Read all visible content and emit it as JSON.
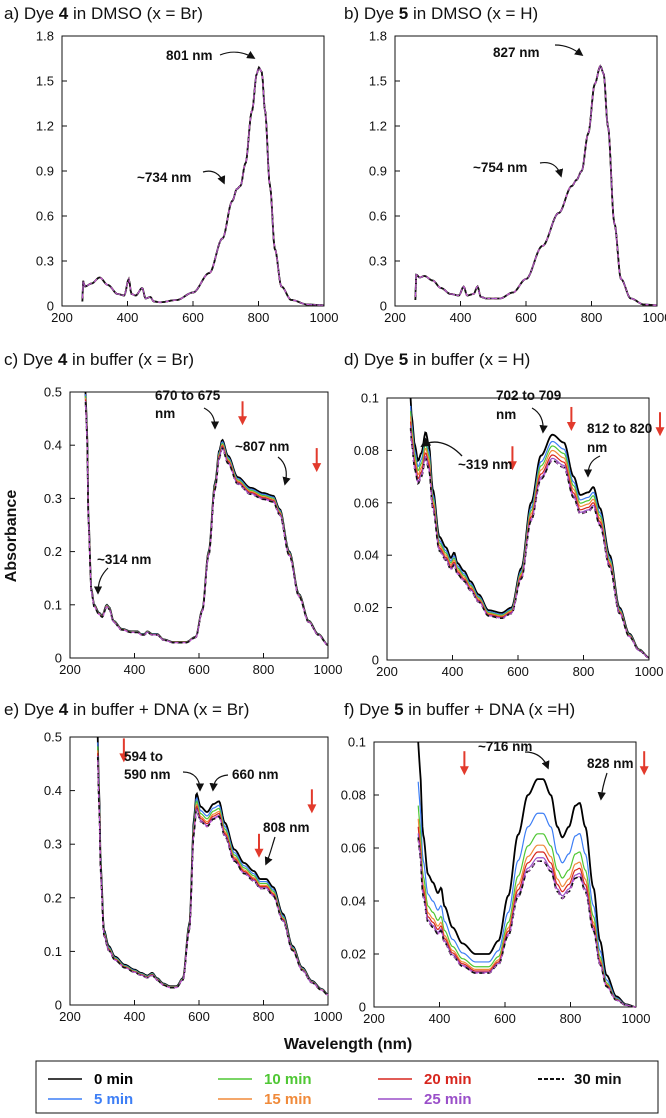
{
  "figure": {
    "xlabel": "Wavelength (nm)",
    "ylabel": "Absorbance"
  },
  "legend": [
    {
      "label": "0 min",
      "color": "#000000",
      "dashed": false
    },
    {
      "label": "5 min",
      "color": "#3d7ef5",
      "dashed": false
    },
    {
      "label": "10 min",
      "color": "#4fc734",
      "dashed": false
    },
    {
      "label": "15 min",
      "color": "#f08a3a",
      "dashed": false
    },
    {
      "label": "20 min",
      "color": "#d7261e",
      "dashed": false
    },
    {
      "label": "25 min",
      "color": "#9a4fc9",
      "dashed": false
    },
    {
      "label": "30 min",
      "color": "#111111",
      "dashed": true
    }
  ],
  "arrow_color": "#e23a2c",
  "chart_data": [
    {
      "id": "a",
      "type": "line",
      "title": {
        "prefix": "a) Dye ",
        "num": "4",
        "suffix": " in DMSO (x = Br)"
      },
      "xlabel": "Wavelength (nm)",
      "ylabel": "Absorbance",
      "xlim": [
        200,
        1000
      ],
      "ylim": [
        0,
        1.8
      ],
      "xticks": [
        "200",
        "400",
        "600",
        "800",
        "1000"
      ],
      "yticks": [
        "0",
        "0.3",
        "0.6",
        "0.9",
        "1.2",
        "1.5",
        "1.8"
      ],
      "ytick_values": [
        0,
        0.3,
        0.6,
        0.9,
        1.2,
        1.5,
        1.8
      ],
      "x_start": 262,
      "anchors": [
        [
          262,
          0.03
        ],
        [
          264,
          0.17
        ],
        [
          270,
          0.13
        ],
        [
          290,
          0.15
        ],
        [
          315,
          0.19
        ],
        [
          340,
          0.14
        ],
        [
          370,
          0.08
        ],
        [
          390,
          0.07
        ],
        [
          404,
          0.18
        ],
        [
          412,
          0.08
        ],
        [
          425,
          0.07
        ],
        [
          445,
          0.12
        ],
        [
          455,
          0.05
        ],
        [
          470,
          0.06
        ],
        [
          480,
          0.03
        ],
        [
          500,
          0.025
        ],
        [
          550,
          0.04
        ],
        [
          600,
          0.09
        ],
        [
          650,
          0.22
        ],
        [
          690,
          0.45
        ],
        [
          720,
          0.7
        ],
        [
          734,
          0.78
        ],
        [
          745,
          0.8
        ],
        [
          760,
          0.95
        ],
        [
          780,
          1.3
        ],
        [
          795,
          1.55
        ],
        [
          801,
          1.59
        ],
        [
          810,
          1.56
        ],
        [
          820,
          1.3
        ],
        [
          835,
          0.8
        ],
        [
          850,
          0.38
        ],
        [
          870,
          0.13
        ],
        [
          900,
          0.04
        ],
        [
          950,
          0.01
        ],
        [
          1000,
          0.005
        ]
      ],
      "series_scale": [
        1,
        1,
        1,
        1,
        1,
        1,
        1
      ],
      "annotations": [
        {
          "text": "801 nm",
          "x_value": 801,
          "y_value": 1.6
        },
        {
          "text": "~734 nm",
          "x_value": 734,
          "y_value": 0.8
        }
      ],
      "trend_arrows": []
    },
    {
      "id": "b",
      "type": "line",
      "title": {
        "prefix": "b) Dye ",
        "num": "5",
        "suffix": " in DMSO (x = H)"
      },
      "xlabel": "Wavelength (nm)",
      "ylabel": "Absorbance",
      "xlim": [
        200,
        1000
      ],
      "ylim": [
        0,
        1.8
      ],
      "xticks": [
        "200",
        "400",
        "600",
        "800",
        "1000"
      ],
      "yticks": [
        "0",
        "0.3",
        "0.6",
        "0.9",
        "1.2",
        "1.5",
        "1.8"
      ],
      "ytick_values": [
        0,
        0.3,
        0.6,
        0.9,
        1.2,
        1.5,
        1.8
      ],
      "x_start": 262,
      "anchors": [
        [
          262,
          0.04
        ],
        [
          265,
          0.21
        ],
        [
          275,
          0.19
        ],
        [
          290,
          0.2
        ],
        [
          315,
          0.17
        ],
        [
          340,
          0.12
        ],
        [
          370,
          0.08
        ],
        [
          395,
          0.07
        ],
        [
          410,
          0.13
        ],
        [
          420,
          0.07
        ],
        [
          440,
          0.08
        ],
        [
          452,
          0.13
        ],
        [
          462,
          0.06
        ],
        [
          480,
          0.05
        ],
        [
          520,
          0.05
        ],
        [
          560,
          0.09
        ],
        [
          600,
          0.18
        ],
        [
          650,
          0.4
        ],
        [
          700,
          0.62
        ],
        [
          740,
          0.8
        ],
        [
          754,
          0.84
        ],
        [
          770,
          0.9
        ],
        [
          790,
          1.15
        ],
        [
          810,
          1.48
        ],
        [
          827,
          1.6
        ],
        [
          837,
          1.55
        ],
        [
          850,
          1.2
        ],
        [
          870,
          0.55
        ],
        [
          890,
          0.18
        ],
        [
          920,
          0.05
        ],
        [
          960,
          0.01
        ],
        [
          1000,
          0.005
        ]
      ],
      "series_scale": [
        1,
        1,
        1,
        1,
        1,
        1,
        1
      ],
      "annotations": [
        {
          "text": "827 nm",
          "x_value": 827,
          "y_value": 1.62
        },
        {
          "text": "~754 nm",
          "x_value": 754,
          "y_value": 0.84
        }
      ],
      "trend_arrows": []
    },
    {
      "id": "c",
      "type": "line",
      "title": {
        "prefix": "c) Dye ",
        "num": "4",
        "suffix": " in buffer (x = Br)"
      },
      "xlabel": "Wavelength (nm)",
      "ylabel": "Absorbance",
      "xlim": [
        200,
        1000
      ],
      "ylim": [
        0,
        0.5
      ],
      "xticks": [
        "200",
        "400",
        "600",
        "800",
        "1000"
      ],
      "yticks": [
        "0",
        "0.1",
        "0.2",
        "0.3",
        "0.4",
        "0.5"
      ],
      "ytick_values": [
        0,
        0.1,
        0.2,
        0.3,
        0.4,
        0.5
      ],
      "x_start": 248,
      "anchors": [
        [
          248,
          0.5
        ],
        [
          252,
          0.45
        ],
        [
          258,
          0.25
        ],
        [
          266,
          0.13
        ],
        [
          275,
          0.1
        ],
        [
          290,
          0.085
        ],
        [
          300,
          0.08
        ],
        [
          314,
          0.1
        ],
        [
          322,
          0.095
        ],
        [
          335,
          0.07
        ],
        [
          360,
          0.055
        ],
        [
          390,
          0.05
        ],
        [
          410,
          0.05
        ],
        [
          420,
          0.045
        ],
        [
          430,
          0.045
        ],
        [
          440,
          0.05
        ],
        [
          455,
          0.045
        ],
        [
          470,
          0.045
        ],
        [
          490,
          0.035
        ],
        [
          520,
          0.03
        ],
        [
          560,
          0.03
        ],
        [
          590,
          0.04
        ],
        [
          610,
          0.09
        ],
        [
          630,
          0.2
        ],
        [
          650,
          0.33
        ],
        [
          663,
          0.39
        ],
        [
          672,
          0.41
        ],
        [
          690,
          0.38
        ],
        [
          720,
          0.34
        ],
        [
          760,
          0.32
        ],
        [
          800,
          0.31
        ],
        [
          830,
          0.305
        ],
        [
          850,
          0.28
        ],
        [
          880,
          0.2
        ],
        [
          910,
          0.12
        ],
        [
          940,
          0.07
        ],
        [
          970,
          0.045
        ],
        [
          1000,
          0.025
        ]
      ],
      "series_scale": [
        1,
        0.992,
        0.985,
        0.978,
        0.972,
        0.966,
        0.962
      ],
      "annotations": [
        {
          "text": "670 to 675",
          "x_value": 672,
          "y_value": 0.415
        },
        {
          "text": "nm",
          "x_value": 672,
          "y_value": 0.415
        },
        {
          "text": "~807 nm",
          "x_value": 850,
          "y_value": 0.3
        },
        {
          "text": "~314 nm",
          "x_value": 318,
          "y_value": 0.105
        }
      ],
      "trend_arrows": [
        {
          "x_value": 735,
          "y_value": 0.46
        },
        {
          "x_value": 965,
          "y_value": 0.372
        }
      ]
    },
    {
      "id": "d",
      "type": "line",
      "title": {
        "prefix": "d) Dye ",
        "num": "5",
        "suffix": " in buffer (x = H)"
      },
      "xlabel": "Wavelength (nm)",
      "ylabel": "Absorbance",
      "xlim": [
        200,
        1000
      ],
      "ylim": [
        0,
        0.1
      ],
      "xticks": [
        "200",
        "400",
        "600",
        "800",
        "1000"
      ],
      "yticks": [
        "0",
        "0.02",
        "0.04",
        "0.06",
        "0.08",
        "0.1"
      ],
      "ytick_values": [
        0,
        0.02,
        0.04,
        0.06,
        0.08,
        0.1
      ],
      "x_start": 272,
      "anchors": [
        [
          272,
          0.1
        ],
        [
          276,
          0.092
        ],
        [
          285,
          0.082
        ],
        [
          295,
          0.076
        ],
        [
          305,
          0.079
        ],
        [
          318,
          0.087
        ],
        [
          328,
          0.082
        ],
        [
          340,
          0.065
        ],
        [
          360,
          0.047
        ],
        [
          380,
          0.043
        ],
        [
          395,
          0.039
        ],
        [
          405,
          0.041
        ],
        [
          415,
          0.037
        ],
        [
          435,
          0.034
        ],
        [
          455,
          0.03
        ],
        [
          480,
          0.025
        ],
        [
          510,
          0.019
        ],
        [
          550,
          0.018
        ],
        [
          580,
          0.02
        ],
        [
          610,
          0.035
        ],
        [
          640,
          0.06
        ],
        [
          670,
          0.078
        ],
        [
          705,
          0.086
        ],
        [
          740,
          0.083
        ],
        [
          770,
          0.07
        ],
        [
          790,
          0.063
        ],
        [
          815,
          0.064
        ],
        [
          830,
          0.066
        ],
        [
          850,
          0.058
        ],
        [
          880,
          0.04
        ],
        [
          910,
          0.02
        ],
        [
          940,
          0.01
        ],
        [
          970,
          0.004
        ],
        [
          1000,
          0.001
        ]
      ],
      "series_scale": [
        1,
        0.97,
        0.95,
        0.93,
        0.91,
        0.895,
        0.885
      ],
      "annotations": [
        {
          "text": "702 to 709",
          "x_value": 705,
          "y_value": 0.086
        },
        {
          "text": "nm",
          "x_value": 705,
          "y_value": 0.086
        },
        {
          "text": "812 to 820",
          "x_value": 825,
          "y_value": 0.066
        },
        {
          "text": "nm",
          "x_value": 825,
          "y_value": 0.066
        },
        {
          "text": "~319 nm",
          "x_value": 318,
          "y_value": 0.088
        }
      ],
      "trend_arrows": [
        {
          "x_value": 583,
          "y_value": 0.077
        },
        {
          "x_value": 763,
          "y_value": 0.092
        },
        {
          "x_value": 1050,
          "y_value": 0.09
        }
      ]
    },
    {
      "id": "e",
      "type": "line",
      "title": {
        "prefix": "e) Dye ",
        "num": "4",
        "suffix": " in buffer + DNA (x = Br)"
      },
      "xlabel": "Wavelength (nm)",
      "ylabel": "Absorbance",
      "xlim": [
        200,
        1000
      ],
      "ylim": [
        0,
        0.5
      ],
      "xticks": [
        "200",
        "400",
        "600",
        "800",
        "1000"
      ],
      "yticks": [
        "0",
        "0.1",
        "0.2",
        "0.3",
        "0.4",
        "0.5"
      ],
      "ytick_values": [
        0,
        0.1,
        0.2,
        0.3,
        0.4,
        0.5
      ],
      "x_start": 286,
      "anchors": [
        [
          286,
          0.5
        ],
        [
          290,
          0.4
        ],
        [
          296,
          0.25
        ],
        [
          305,
          0.14
        ],
        [
          320,
          0.11
        ],
        [
          340,
          0.09
        ],
        [
          370,
          0.075
        ],
        [
          400,
          0.066
        ],
        [
          420,
          0.06
        ],
        [
          440,
          0.055
        ],
        [
          455,
          0.06
        ],
        [
          470,
          0.05
        ],
        [
          490,
          0.04
        ],
        [
          510,
          0.035
        ],
        [
          530,
          0.035
        ],
        [
          550,
          0.05
        ],
        [
          570,
          0.15
        ],
        [
          585,
          0.35
        ],
        [
          592,
          0.395
        ],
        [
          605,
          0.37
        ],
        [
          625,
          0.36
        ],
        [
          645,
          0.375
        ],
        [
          662,
          0.38
        ],
        [
          680,
          0.34
        ],
        [
          710,
          0.29
        ],
        [
          740,
          0.265
        ],
        [
          770,
          0.25
        ],
        [
          790,
          0.235
        ],
        [
          808,
          0.235
        ],
        [
          830,
          0.22
        ],
        [
          860,
          0.17
        ],
        [
          890,
          0.11
        ],
        [
          920,
          0.07
        ],
        [
          950,
          0.045
        ],
        [
          980,
          0.03
        ],
        [
          1000,
          0.02
        ]
      ],
      "series_scale": [
        1,
        0.98,
        0.965,
        0.95,
        0.94,
        0.93,
        0.925
      ],
      "annotations": [
        {
          "text": "594 to",
          "x_value": 592,
          "y_value": 0.395
        },
        {
          "text": "590 nm",
          "x_value": 592,
          "y_value": 0.395
        },
        {
          "text": "660 nm",
          "x_value": 662,
          "y_value": 0.38
        },
        {
          "text": "808 nm",
          "x_value": 808,
          "y_value": 0.24
        }
      ],
      "trend_arrows": [
        {
          "x_value": 367,
          "y_value": 0.475
        },
        {
          "x_value": 950,
          "y_value": 0.38
        },
        {
          "x_value": 786,
          "y_value": 0.297
        }
      ]
    },
    {
      "id": "f",
      "type": "line",
      "title": {
        "prefix": "f) Dye ",
        "num": "5",
        "suffix": " in buffer + DNA (x =H)"
      },
      "xlabel": "Wavelength (nm)",
      "ylabel": "Absorbance",
      "xlim": [
        200,
        1000
      ],
      "ylim": [
        0,
        0.1
      ],
      "xticks": [
        "200",
        "400",
        "600",
        "800",
        "1000"
      ],
      "yticks": [
        "0",
        "0.02",
        "0.04",
        "0.06",
        "0.08",
        "0.1"
      ],
      "ytick_values": [
        0,
        0.02,
        0.04,
        0.06,
        0.08,
        0.1
      ],
      "x_start": 335,
      "anchors": [
        [
          335,
          0.1
        ],
        [
          340,
          0.09
        ],
        [
          350,
          0.065
        ],
        [
          365,
          0.05
        ],
        [
          380,
          0.047
        ],
        [
          395,
          0.043
        ],
        [
          405,
          0.045
        ],
        [
          415,
          0.038
        ],
        [
          440,
          0.03
        ],
        [
          470,
          0.024
        ],
        [
          510,
          0.02
        ],
        [
          550,
          0.02
        ],
        [
          580,
          0.025
        ],
        [
          610,
          0.042
        ],
        [
          640,
          0.065
        ],
        [
          670,
          0.08
        ],
        [
          700,
          0.086
        ],
        [
          716,
          0.086
        ],
        [
          740,
          0.08
        ],
        [
          760,
          0.068
        ],
        [
          775,
          0.064
        ],
        [
          795,
          0.068
        ],
        [
          815,
          0.076
        ],
        [
          828,
          0.077
        ],
        [
          845,
          0.068
        ],
        [
          870,
          0.045
        ],
        [
          890,
          0.025
        ],
        [
          910,
          0.012
        ],
        [
          940,
          0.004
        ],
        [
          970,
          0.001
        ],
        [
          1000,
          0
        ]
      ],
      "series_scale": [
        1,
        0.85,
        0.76,
        0.71,
        0.68,
        0.655,
        0.64
      ],
      "annotations": [
        {
          "text": "~716 nm",
          "x_value": 716,
          "y_value": 0.087
        },
        {
          "text": "828 nm",
          "x_value": 828,
          "y_value": 0.078
        }
      ],
      "trend_arrows": [
        {
          "x_value": 476,
          "y_value": 0.092
        },
        {
          "x_value": 1025,
          "y_value": 0.092
        }
      ]
    }
  ]
}
